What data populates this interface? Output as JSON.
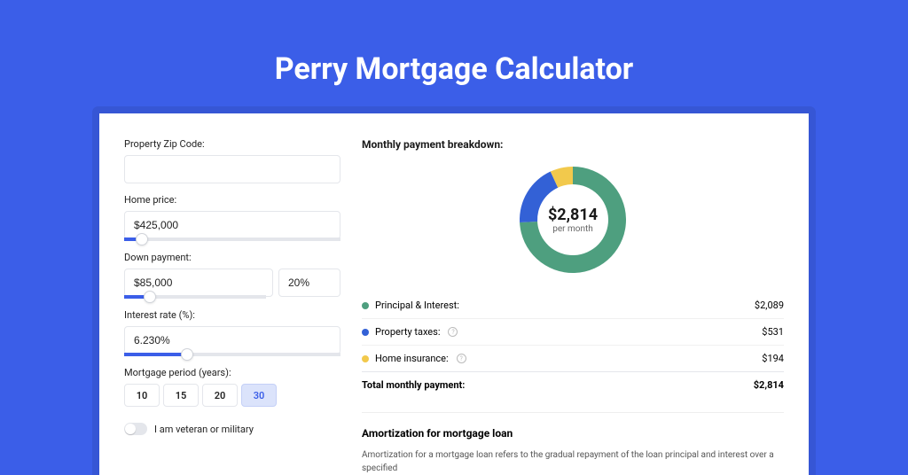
{
  "page_title": "Perry Mortgage Calculator",
  "colors": {
    "page_bg": "#3b5ee8",
    "card_bg": "#ffffff",
    "accent": "#3b5ee8",
    "border": "#e4e6eb",
    "text": "#1a1a1a",
    "muted": "#666666"
  },
  "form": {
    "zip_label": "Property Zip Code:",
    "zip_value": "",
    "home_price_label": "Home price:",
    "home_price_value": "$425,000",
    "home_price_slider": {
      "fill_pct": 8,
      "thumb_pct": 8
    },
    "down_payment_label": "Down payment:",
    "down_payment_value": "$85,000",
    "down_payment_pct": "20%",
    "down_payment_slider": {
      "fill_pct": 18,
      "thumb_pct": 18
    },
    "interest_label": "Interest rate (%):",
    "interest_value": "6.230%",
    "interest_slider": {
      "fill_pct": 29,
      "thumb_pct": 29
    },
    "period_label": "Mortgage period (years):",
    "periods": [
      {
        "label": "10",
        "active": false
      },
      {
        "label": "15",
        "active": false
      },
      {
        "label": "20",
        "active": false
      },
      {
        "label": "30",
        "active": true
      }
    ],
    "veteran_label": "I am veteran or military",
    "veteran_on": false
  },
  "breakdown": {
    "heading": "Monthly payment breakdown:",
    "donut": {
      "size": 128,
      "thickness": 20,
      "center_amount": "$2,814",
      "center_sub": "per month",
      "slices": [
        {
          "name": "principal_interest",
          "value": 2089,
          "pct": 0.742,
          "color": "#4e9f7f"
        },
        {
          "name": "property_taxes",
          "value": 531,
          "pct": 0.189,
          "color": "#3361d6"
        },
        {
          "name": "home_insurance",
          "value": 194,
          "pct": 0.069,
          "color": "#f2c94c"
        }
      ]
    },
    "rows": [
      {
        "color": "#4e9f7f",
        "label": "Principal & Interest:",
        "info": false,
        "value": "$2,089"
      },
      {
        "color": "#3361d6",
        "label": "Property taxes:",
        "info": true,
        "value": "$531"
      },
      {
        "color": "#f2c94c",
        "label": "Home insurance:",
        "info": true,
        "value": "$194"
      }
    ],
    "total_label": "Total monthly payment:",
    "total_value": "$2,814"
  },
  "amortization": {
    "title": "Amortization for mortgage loan",
    "body": "Amortization for a mortgage loan refers to the gradual repayment of the loan principal and interest over a specified"
  }
}
